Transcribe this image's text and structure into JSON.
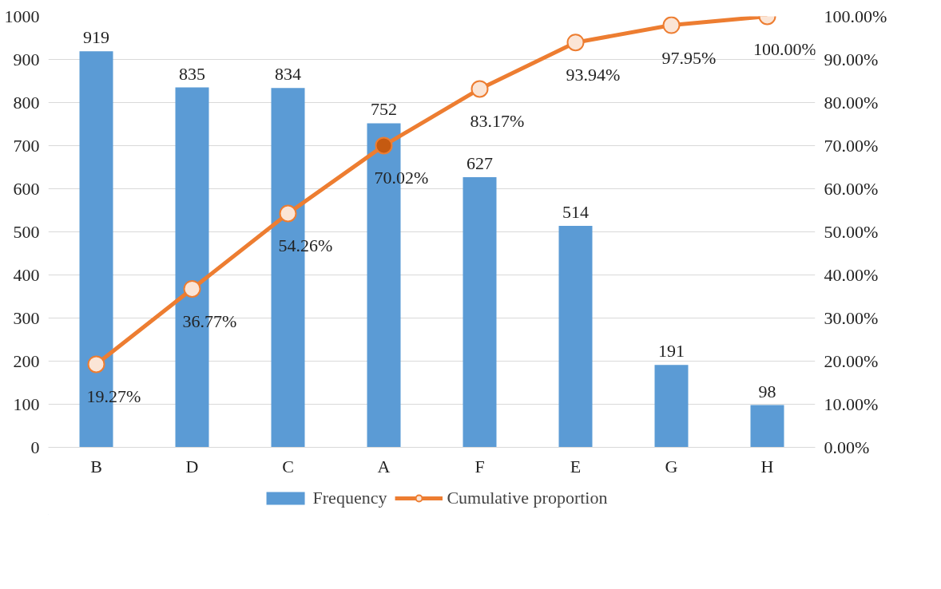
{
  "chart_data": {
    "type": "bar",
    "categories": [
      "B",
      "D",
      "C",
      "A",
      "F",
      "E",
      "G",
      "H"
    ],
    "series": [
      {
        "name": "Frequency",
        "type": "bar",
        "color": "#5b9bd5",
        "values": [
          919,
          835,
          834,
          752,
          627,
          514,
          191,
          98
        ],
        "data_labels": true
      },
      {
        "name": "Cumulative proportion",
        "type": "line",
        "axis": "y2",
        "color": "#ed7d31",
        "marker": "circle",
        "colors": [
          "#fbe5d6",
          "#fbe5d6",
          "#fbe5d6",
          "#c55a11",
          "#fbe5d6",
          "#fbe5d6",
          "#fbe5d6",
          "#fbe5d6"
        ],
        "values": [
          19.27,
          36.77,
          54.26,
          70.02,
          83.17,
          93.94,
          97.95,
          100.0
        ],
        "value_labels": [
          "19.27%",
          "36.77%",
          "54.26%",
          "70.02%",
          "83.17%",
          "93.94%",
          "97.95%",
          "100.00%"
        ]
      }
    ],
    "ylim": [
      0,
      1000
    ],
    "yticks": [
      0,
      100,
      200,
      300,
      400,
      500,
      600,
      700,
      800,
      900,
      1000
    ],
    "y2lim": [
      0,
      100
    ],
    "y2ticks": [
      {
        "value": 0,
        "label": "0.00%"
      },
      {
        "value": 10,
        "label": "10.00%"
      },
      {
        "value": 20,
        "label": "20.00%"
      },
      {
        "value": 30,
        "label": "30.00%"
      },
      {
        "value": 40,
        "label": "40.00%"
      },
      {
        "value": 50,
        "label": "50.00%"
      },
      {
        "value": 60,
        "label": "60.00%"
      },
      {
        "value": 70,
        "label": "70.00%"
      },
      {
        "value": 80,
        "label": "80.00%"
      },
      {
        "value": 90,
        "label": "90.00%"
      },
      {
        "value": 100,
        "label": "100.00%"
      }
    ],
    "grid": "y",
    "legend": "bottom"
  }
}
